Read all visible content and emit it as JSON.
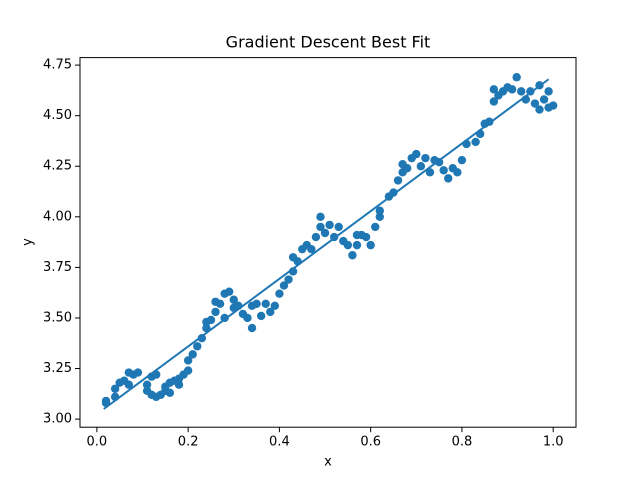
{
  "chart_data": {
    "type": "scatter",
    "title": "Gradient Descent Best Fit",
    "x_label": "x",
    "y_label": "y",
    "xlim": [
      -0.037,
      1.05
    ],
    "ylim": [
      2.96,
      4.787
    ],
    "xticks": [
      {
        "value": 0,
        "label": "0.0"
      },
      0.2,
      0.4,
      0.6,
      0.8,
      {
        "value": 1,
        "label": "1.0"
      }
    ],
    "yticks": [
      {
        "value": 3,
        "label": "3.00"
      },
      3.25,
      {
        "value": 3.5,
        "label": "3.50"
      },
      3.75,
      {
        "value": 4,
        "label": "4.00"
      },
      4.25,
      {
        "value": 4.5,
        "label": "4.50"
      },
      4.75
    ],
    "grid": false,
    "series": [
      {
        "type": "scatter",
        "color": "#1f77b4",
        "x": [
          0.02,
          0.02,
          0.04,
          0.04,
          0.05,
          0.06,
          0.07,
          0.07,
          0.08,
          0.09,
          0.11,
          0.11,
          0.12,
          0.12,
          0.13,
          0.13,
          0.14,
          0.15,
          0.15,
          0.16,
          0.16,
          0.17,
          0.18,
          0.18,
          0.19,
          0.2,
          0.2,
          0.21,
          0.22,
          0.23,
          0.24,
          0.24,
          0.25,
          0.26,
          0.26,
          0.27,
          0.28,
          0.28,
          0.29,
          0.3,
          0.3,
          0.31,
          0.32,
          0.33,
          0.34,
          0.34,
          0.35,
          0.36,
          0.37,
          0.38,
          0.39,
          0.4,
          0.41,
          0.42,
          0.43,
          0.43,
          0.44,
          0.45,
          0.46,
          0.47,
          0.48,
          0.49,
          0.49,
          0.5,
          0.51,
          0.52,
          0.53,
          0.54,
          0.55,
          0.56,
          0.57,
          0.57,
          0.58,
          0.59,
          0.6,
          0.61,
          0.62,
          0.62,
          0.64,
          0.65,
          0.66,
          0.67,
          0.67,
          0.68,
          0.69,
          0.7,
          0.71,
          0.72,
          0.73,
          0.74,
          0.75,
          0.76,
          0.77,
          0.78,
          0.79,
          0.8,
          0.81,
          0.83,
          0.84,
          0.85,
          0.86,
          0.87,
          0.87,
          0.88,
          0.89,
          0.9,
          0.91,
          0.92,
          0.93,
          0.94,
          0.95,
          0.96,
          0.97,
          0.97,
          0.98,
          0.99,
          0.99,
          1.0
        ],
        "values": [
          3.08,
          3.09,
          3.15,
          3.11,
          3.18,
          3.19,
          3.23,
          3.17,
          3.22,
          3.23,
          3.17,
          3.14,
          3.21,
          3.12,
          3.22,
          3.11,
          3.12,
          3.14,
          3.16,
          3.13,
          3.18,
          3.19,
          3.17,
          3.2,
          3.22,
          3.24,
          3.29,
          3.32,
          3.36,
          3.4,
          3.45,
          3.48,
          3.49,
          3.53,
          3.58,
          3.57,
          3.62,
          3.5,
          3.63,
          3.55,
          3.59,
          3.56,
          3.52,
          3.5,
          3.45,
          3.56,
          3.57,
          3.51,
          3.57,
          3.53,
          3.56,
          3.62,
          3.66,
          3.69,
          3.73,
          3.8,
          3.78,
          3.84,
          3.86,
          3.84,
          3.9,
          3.95,
          4.0,
          3.92,
          3.96,
          3.9,
          3.95,
          3.88,
          3.86,
          3.81,
          3.91,
          3.86,
          3.91,
          3.9,
          3.86,
          3.95,
          4.0,
          4.03,
          4.1,
          4.12,
          4.18,
          4.22,
          4.26,
          4.24,
          4.29,
          4.31,
          4.25,
          4.29,
          4.22,
          4.28,
          4.27,
          4.23,
          4.19,
          4.24,
          4.22,
          4.28,
          4.36,
          4.37,
          4.41,
          4.46,
          4.47,
          4.63,
          4.57,
          4.6,
          4.62,
          4.64,
          4.63,
          4.69,
          4.62,
          4.58,
          4.62,
          4.56,
          4.53,
          4.65,
          4.58,
          4.62,
          4.54,
          4.55
        ]
      },
      {
        "type": "line",
        "color": "#1f77b4",
        "x": [
          0.015,
          0.99
        ],
        "values": [
          3.05,
          4.68
        ]
      }
    ]
  }
}
